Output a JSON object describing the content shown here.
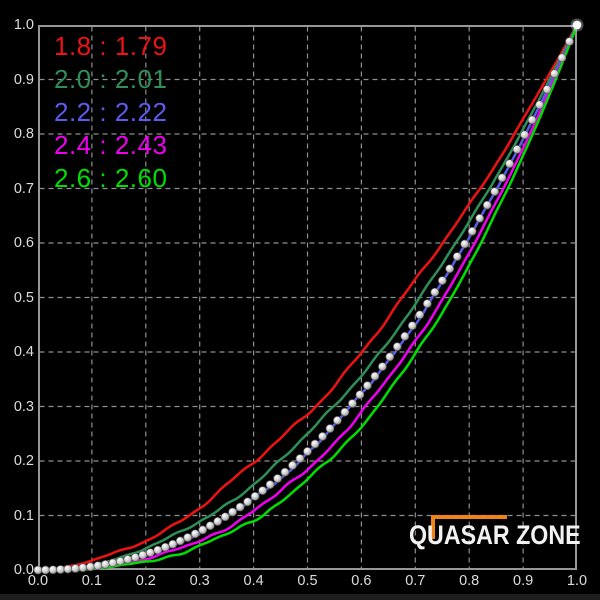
{
  "page": {
    "background": "#000000",
    "footer_bar_color": "#1d1d1d"
  },
  "axes_style": {
    "border_color": "#979797",
    "grid_color": "#8f8f8f",
    "tick_label_color": "#dedede"
  },
  "chart_data": {
    "type": "line",
    "title": "",
    "xlabel": "",
    "ylabel": "",
    "xlim": [
      0,
      1
    ],
    "ylim": [
      0,
      1
    ],
    "grid": "dashed, 0.1 steps",
    "legend_position": "top-left",
    "legend_separator": " : ",
    "curve_model": "y = x^gamma",
    "x_ticks": [
      "0.0",
      "0.1",
      "0.2",
      "0.3",
      "0.4",
      "0.5",
      "0.6",
      "0.7",
      "0.8",
      "0.9",
      "1.0"
    ],
    "y_ticks": [
      "0.0",
      "0.1",
      "0.2",
      "0.3",
      "0.4",
      "0.5",
      "0.6",
      "0.7",
      "0.8",
      "0.9",
      "1.0"
    ],
    "series": [
      {
        "legend_target": "1.8",
        "legend_measured": "1.79",
        "gamma": 1.79,
        "color": "#ee1212"
      },
      {
        "legend_target": "2.0",
        "legend_measured": "2.01",
        "gamma": 2.01,
        "color": "#2f8f58"
      },
      {
        "legend_target": "2.2",
        "legend_measured": "2.22",
        "gamma": 2.22,
        "color": "#5b5bf0"
      },
      {
        "legend_target": "2.4",
        "legend_measured": "2.43",
        "gamma": 2.43,
        "color": "#f000f0"
      },
      {
        "legend_target": "2.6",
        "legend_measured": "2.60",
        "gamma": 2.6,
        "color": "#00e000"
      }
    ],
    "reference_dots": {
      "gamma": 2.2,
      "count": 73,
      "fill": "#cfcfcf",
      "edge": "#5a5a5a",
      "endpoint_fill": "#ffffff"
    }
  },
  "watermark": {
    "text": "QUASAR ZONE",
    "text_color": "#f2f2f2",
    "accent_color": "#ef8318"
  }
}
